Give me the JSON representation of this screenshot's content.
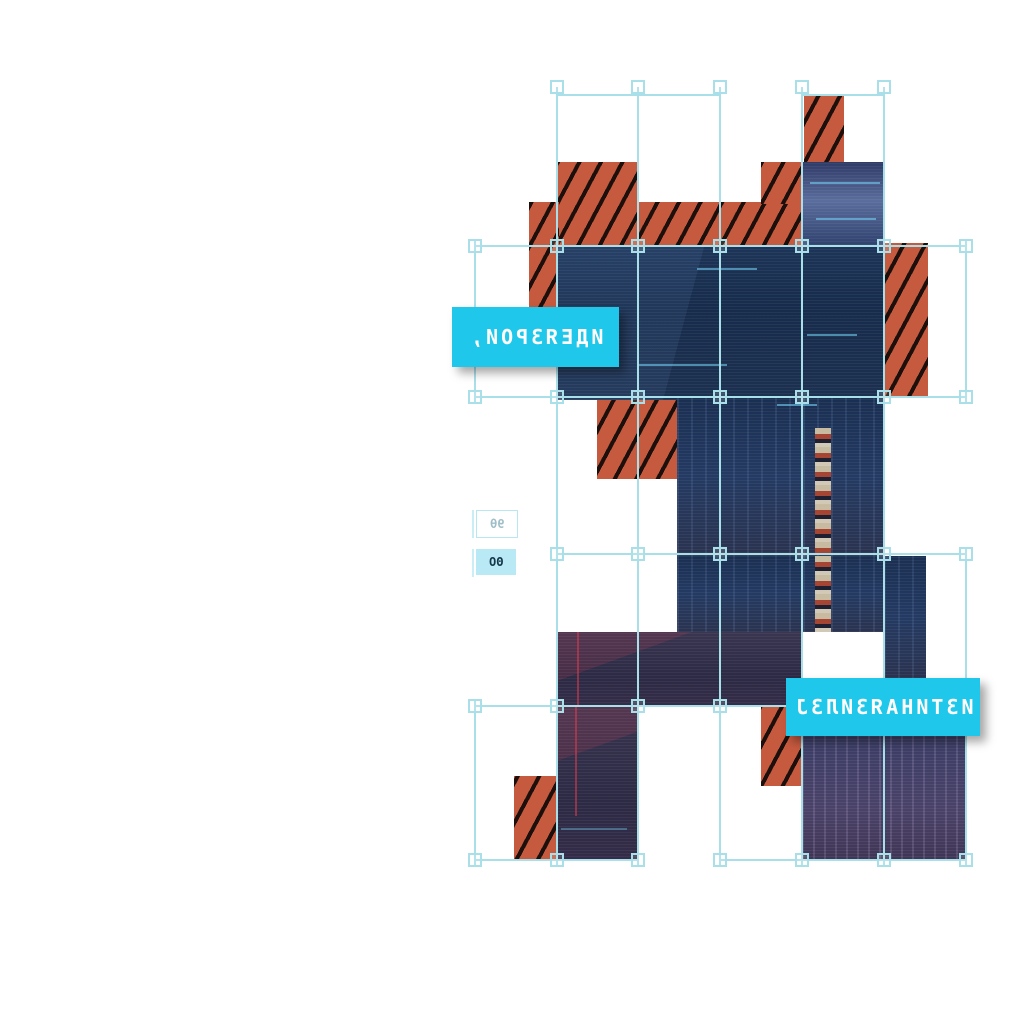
{
  "labels": {
    "left_tag": "ИДЕЯЗРОИ,",
    "right_tag": "ИЗТИНАЯЗИЛЗЈ"
  },
  "chips": [
    {
      "text": "9θ",
      "selected": false
    },
    {
      "text": "ΘΟ",
      "selected": true
    }
  ],
  "colors": {
    "guide_cyan": "#a8dfe8",
    "label_cyan": "#1fc8ea",
    "hatch_orange": "#c65a3f",
    "hatch_stripe": "#1d0f0c"
  }
}
